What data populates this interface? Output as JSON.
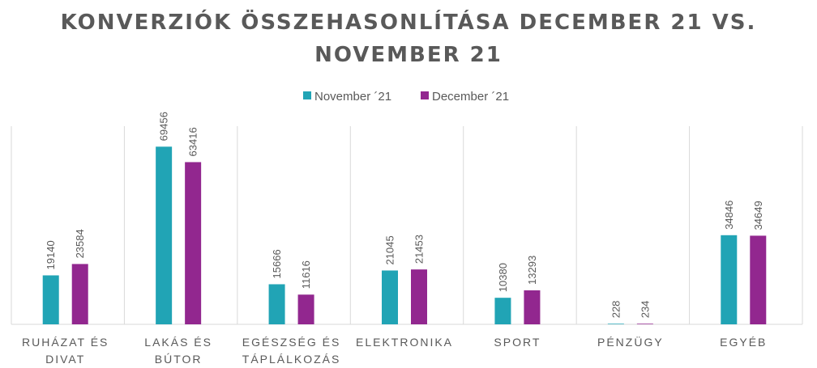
{
  "chart_data": {
    "type": "bar",
    "title": "KONVERZIÓK ÖSSZEHASONLÍTÁSA DECEMBER 21 VS. NOVEMBER 21",
    "categories": [
      [
        "RUHÁZAT ÉS",
        "DIVAT"
      ],
      [
        "LAKÁS ÉS",
        "BÚTOR"
      ],
      [
        "EGÉSZSÉG ÉS",
        "TÁPLÁLKOZÁS"
      ],
      [
        "ELEKTRONIKA"
      ],
      [
        "SPORT"
      ],
      [
        "PÉNZÜGY"
      ],
      [
        "EGYÉB"
      ]
    ],
    "series": [
      {
        "name": "November ´21",
        "color": "#21A4B5",
        "values": [
          19140,
          69456,
          15666,
          21045,
          10380,
          228,
          34846
        ]
      },
      {
        "name": "December ´21",
        "color": "#92278F",
        "values": [
          23584,
          63416,
          11616,
          21453,
          13293,
          234,
          34649
        ]
      }
    ],
    "ylim": [
      0,
      80000
    ],
    "legend": "top",
    "grid": false,
    "category_separators": true,
    "xlabel": "",
    "ylabel": ""
  }
}
